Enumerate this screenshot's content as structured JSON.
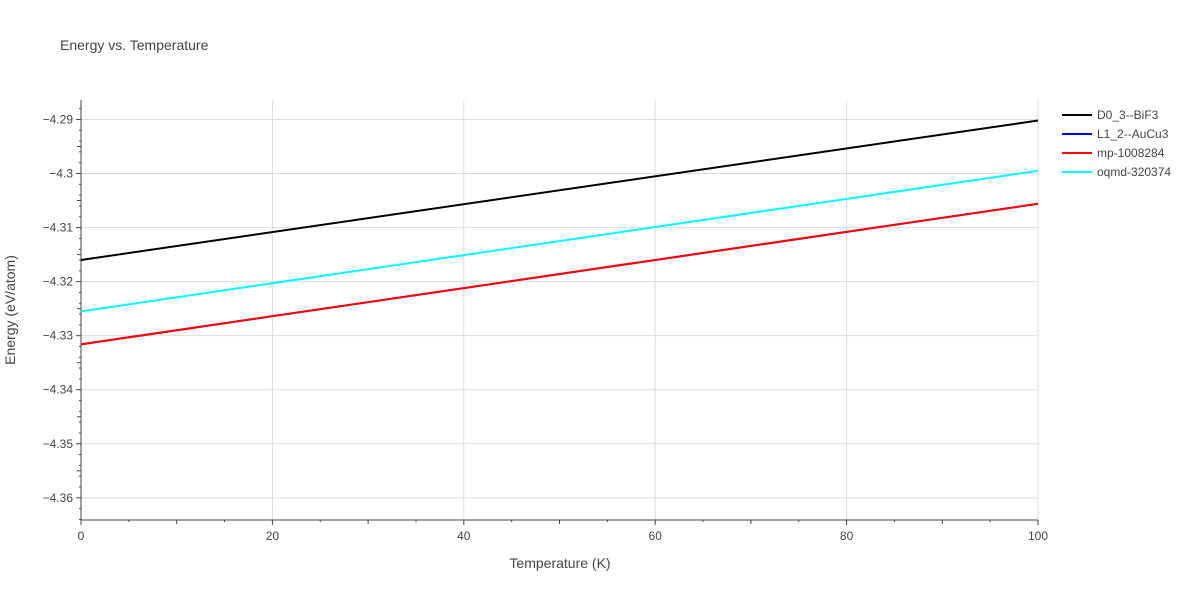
{
  "chart_data": {
    "type": "line",
    "title": "Energy vs. Temperature",
    "xlabel": "Temperature (K)",
    "ylabel": "Energy (eV/atom)",
    "xlim": [
      0,
      100
    ],
    "ylim": [
      -4.3641,
      -4.2864
    ],
    "x_ticks": [
      0,
      20,
      40,
      60,
      80,
      100
    ],
    "x_tick_labels": [
      "0",
      "20",
      "40",
      "60",
      "80",
      "100"
    ],
    "y_ticks": [
      -4.29,
      -4.3,
      -4.31,
      -4.32,
      -4.33,
      -4.34,
      -4.35,
      -4.36
    ],
    "y_tick_labels": [
      "−4.29",
      "−4.3",
      "−4.31",
      "−4.32",
      "−4.33",
      "−4.34",
      "−4.35",
      "−4.36"
    ],
    "grid": true,
    "legend_position": "top-right, outside plot",
    "series": [
      {
        "name": "D0_3--BiF3",
        "color": "#000000",
        "x": [
          0,
          100
        ],
        "values": [
          -4.316,
          -4.2902
        ]
      },
      {
        "name": "L1_2--AuCu3",
        "color": "#0000ff",
        "x": [
          0,
          100
        ],
        "values": [
          -4.3316,
          -4.3056
        ]
      },
      {
        "name": "mp-1008284",
        "color": "#ff0000",
        "x": [
          0,
          100
        ],
        "values": [
          -4.3316,
          -4.3056
        ]
      },
      {
        "name": "oqmd-320374",
        "color": "#00ffff",
        "x": [
          0,
          100
        ],
        "values": [
          -4.3255,
          -4.2995
        ]
      }
    ]
  }
}
